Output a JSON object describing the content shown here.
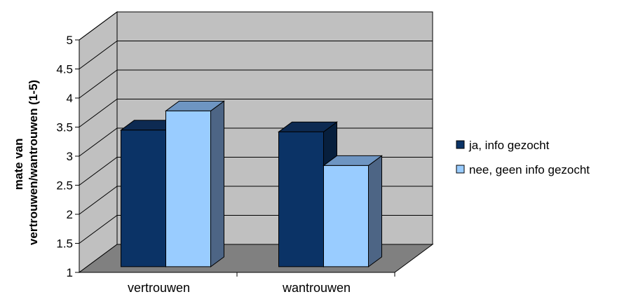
{
  "chart_data": {
    "type": "bar",
    "categories": [
      "vertrouwen",
      "wantrouwen"
    ],
    "series": [
      {
        "name": "ja, info gezocht",
        "values": [
          3.35,
          3.32
        ],
        "color": "#0b3366",
        "side_color": "#071f3d",
        "top_color": "#0d2a52"
      },
      {
        "name": "nee, geen info gezocht",
        "values": [
          3.68,
          2.74
        ],
        "color": "#99ccff",
        "side_color": "#4d6585",
        "top_color": "#6e95c2"
      }
    ],
    "title": "",
    "xlabel": "",
    "ylabel": [
      "mate van",
      "vertrouwen/wantrouwen (1-5)"
    ],
    "ylim": [
      1,
      5
    ],
    "yticks": [
      "1",
      "1.5",
      "2",
      "2.5",
      "3",
      "3.5",
      "4",
      "4.5",
      "5"
    ],
    "grid": true,
    "legend_position": "right",
    "wall_color": "#c0c0c0",
    "floor_color": "#808080"
  }
}
